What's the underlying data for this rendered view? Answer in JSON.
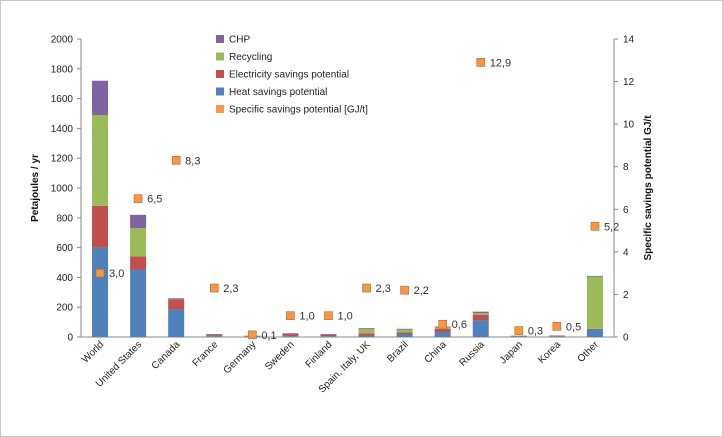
{
  "chart_data": {
    "type": "bar",
    "stacked": true,
    "categories": [
      "World",
      "United States",
      "Canada",
      "France",
      "Germany",
      "Sweden",
      "Finland",
      "Spain, Italy, UK",
      "Brazil",
      "China",
      "Russia",
      "Japan",
      "Korea",
      "Other"
    ],
    "series": [
      {
        "name": "Heat savings potential",
        "color": "#4f81bd",
        "values": [
          600,
          450,
          185,
          5,
          3,
          5,
          5,
          10,
          20,
          30,
          110,
          5,
          3,
          50
        ]
      },
      {
        "name": "Electricity savings potential",
        "color": "#c0504d",
        "values": [
          280,
          90,
          65,
          10,
          5,
          15,
          10,
          15,
          10,
          25,
          40,
          3,
          2,
          5
        ]
      },
      {
        "name": "Recycling",
        "color": "#9bbb59",
        "values": [
          610,
          190,
          0,
          2,
          2,
          0,
          0,
          30,
          20,
          10,
          10,
          2,
          2,
          350
        ]
      },
      {
        "name": "CHP",
        "color": "#8064a2",
        "values": [
          230,
          90,
          10,
          3,
          0,
          5,
          5,
          5,
          5,
          5,
          10,
          0,
          3,
          5
        ]
      }
    ],
    "secondary_series": {
      "name": "Specific savings potential [GJ/t]",
      "type": "scatter",
      "color": "#f79646",
      "values": [
        3.0,
        6.5,
        8.3,
        2.3,
        0.1,
        1.0,
        1.0,
        2.3,
        2.2,
        0.6,
        12.9,
        0.3,
        0.5,
        5.2
      ],
      "labels": [
        "3,0",
        "6,5",
        "8,3",
        "2,3",
        "0,1",
        "1,0",
        "1,0",
        "2,3",
        "2,2",
        "0,6",
        "12,9",
        "0,3",
        "0,5",
        "5,2"
      ]
    },
    "ylabel": "Petajoules / yr",
    "ylim": [
      0,
      2000
    ],
    "yticks": [
      0,
      200,
      400,
      600,
      800,
      1000,
      1200,
      1400,
      1600,
      1800,
      2000
    ],
    "y2label": "Specific savings potential GJ/t",
    "y2lim": [
      0,
      14
    ],
    "y2ticks": [
      0,
      2,
      4,
      6,
      8,
      10,
      12,
      14
    ],
    "legend": {
      "position": "top-center",
      "entries": [
        "CHP",
        "Recycling",
        "Electricity savings potential",
        "Heat savings potential",
        "Specific savings potential [GJ/t]"
      ]
    },
    "grid": false
  }
}
